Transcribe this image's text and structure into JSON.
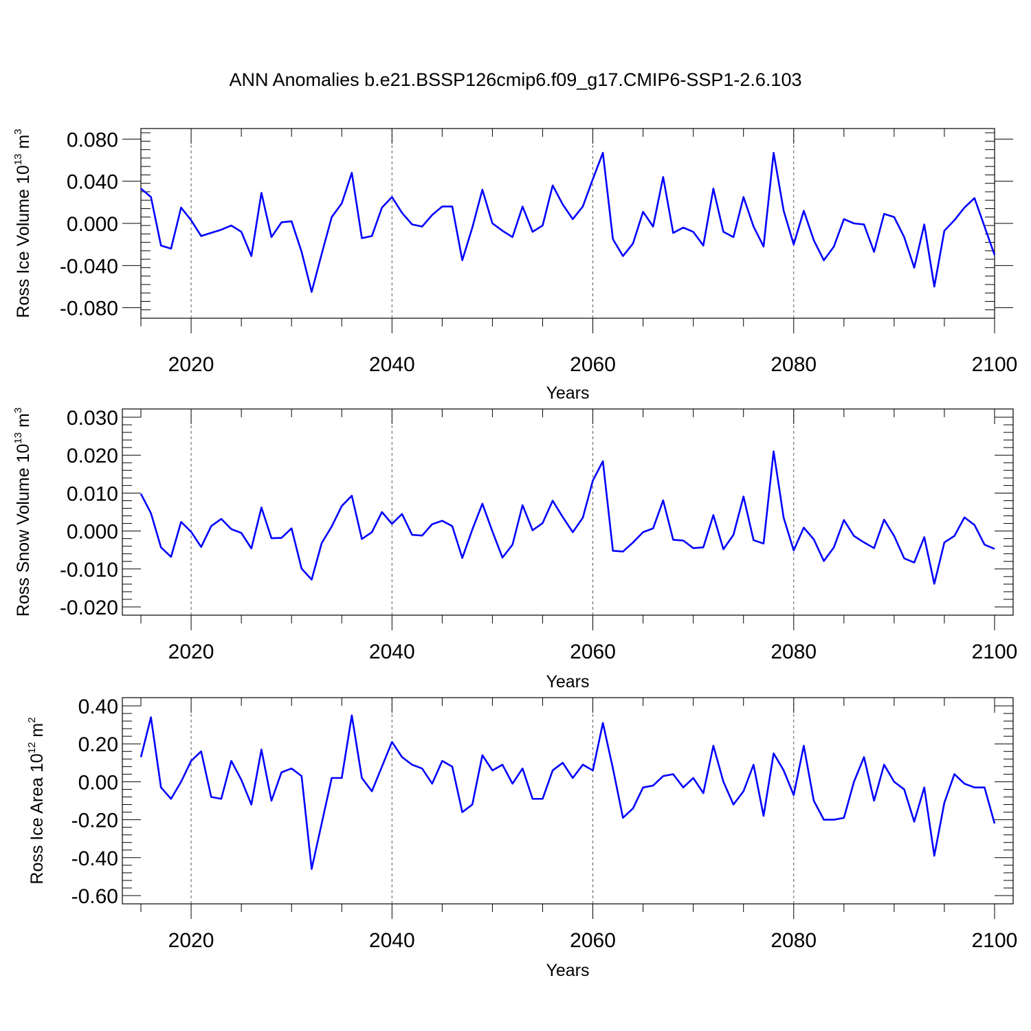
{
  "title": "ANN Anomalies b.e21.BSSP126cmip6.f09_g17.CMIP6-SSP1-2.6.103",
  "line_color": "#0000ff",
  "chart_data": [
    {
      "type": "line",
      "name": "ross-ice-volume",
      "ylabel": {
        "prefix": "Ross Ice Volume 10",
        "exp": "13",
        "unit": " m",
        "unit_exp": "3"
      },
      "xlabel": "Years",
      "xlim": [
        2015,
        2100
      ],
      "ylim": [
        -0.09,
        0.09
      ],
      "yticks": [
        -0.08,
        -0.04,
        0.0,
        0.04,
        0.08
      ],
      "ytick_labels": [
        "-0.080",
        "-0.040",
        "0.000",
        "0.040",
        "0.080"
      ],
      "xticks": [
        2020,
        2040,
        2060,
        2080,
        2100
      ],
      "xtick_labels": [
        "2020",
        "2040",
        "2060",
        "2080",
        "2100"
      ],
      "x_start": 2015,
      "values": [
        0.033,
        0.025,
        -0.021,
        -0.024,
        0.015,
        0.003,
        -0.012,
        -0.009,
        -0.006,
        -0.002,
        -0.008,
        -0.031,
        0.029,
        -0.013,
        0.001,
        0.002,
        -0.027,
        -0.065,
        -0.029,
        0.006,
        0.019,
        0.048,
        -0.014,
        -0.012,
        0.015,
        0.025,
        0.01,
        -0.001,
        -0.003,
        0.008,
        0.016,
        0.016,
        -0.035,
        -0.004,
        0.032,
        0.0,
        -0.007,
        -0.013,
        0.016,
        -0.008,
        -0.002,
        0.036,
        0.018,
        0.004,
        0.016,
        0.042,
        0.067,
        -0.015,
        -0.031,
        -0.019,
        0.011,
        -0.003,
        0.044,
        -0.009,
        -0.004,
        -0.008,
        -0.021,
        0.033,
        -0.008,
        -0.013,
        0.025,
        -0.003,
        -0.022,
        0.067,
        0.012,
        -0.02,
        0.012,
        -0.016,
        -0.035,
        -0.022,
        0.004,
        0.0,
        -0.001,
        -0.027,
        0.009,
        0.006,
        -0.013,
        -0.042,
        -0.001,
        -0.06,
        -0.007,
        0.003,
        0.015,
        0.024,
        -0.003,
        -0.03
      ]
    },
    {
      "type": "line",
      "name": "ross-snow-volume",
      "ylabel": {
        "prefix": "Ross Snow Volume 10",
        "exp": "13",
        "unit": " m",
        "unit_exp": "3"
      },
      "xlabel": "Years",
      "xlim": [
        2015,
        2100
      ],
      "ylim": [
        -0.02,
        0.03
      ],
      "yticks": [
        -0.02,
        -0.01,
        0.0,
        0.01,
        0.02,
        0.03
      ],
      "ytick_labels": [
        "-0.020",
        "-0.010",
        "0.000",
        "0.010",
        "0.020",
        "0.030"
      ],
      "xticks": [
        2020,
        2040,
        2060,
        2080,
        2100
      ],
      "xtick_labels": [
        "2020",
        "2040",
        "2060",
        "2080",
        "2100"
      ],
      "x_start": 2015,
      "values": [
        0.0098,
        0.0047,
        -0.0043,
        -0.0068,
        0.0024,
        -0.0002,
        -0.0042,
        0.0013,
        0.0032,
        0.0005,
        -0.0005,
        -0.0046,
        0.0062,
        -0.0019,
        -0.0018,
        0.0007,
        -0.0099,
        -0.0128,
        -0.0032,
        0.0012,
        0.0066,
        0.0093,
        -0.0021,
        -0.0003,
        0.005,
        0.0019,
        0.0045,
        -0.001,
        -0.0012,
        0.0018,
        0.0027,
        0.0013,
        -0.0071,
        0.0004,
        0.0072,
        -0.0001,
        -0.007,
        -0.0036,
        0.0068,
        0.0002,
        0.0021,
        0.008,
        0.0037,
        -0.0003,
        0.0035,
        0.0133,
        0.0184,
        -0.0052,
        -0.0054,
        -0.003,
        -0.0003,
        0.0007,
        0.0081,
        -0.0023,
        -0.0025,
        -0.0045,
        -0.0043,
        0.0042,
        -0.0048,
        -0.001,
        0.0091,
        -0.0024,
        -0.0033,
        0.021,
        0.0035,
        -0.0051,
        0.0009,
        -0.0022,
        -0.0079,
        -0.0043,
        0.0029,
        -0.0013,
        -0.003,
        -0.0045,
        0.003,
        -0.0013,
        -0.0072,
        -0.0083,
        -0.0016,
        -0.0139,
        -0.003,
        -0.0013,
        0.0036,
        0.0016,
        -0.0036,
        -0.0047
      ]
    },
    {
      "type": "line",
      "name": "ross-ice-area",
      "ylabel": {
        "prefix": "Ross Ice Area 10",
        "exp": "12",
        "unit": " m",
        "unit_exp": "2"
      },
      "xlabel": "Years",
      "xlim": [
        2015,
        2100
      ],
      "ylim": [
        -0.6,
        0.4
      ],
      "yticks": [
        -0.6,
        -0.4,
        -0.2,
        0.0,
        0.2,
        0.4
      ],
      "ytick_labels": [
        "-0.60",
        "-0.40",
        "-0.20",
        "0.00",
        "0.20",
        "0.40"
      ],
      "xticks": [
        2020,
        2040,
        2060,
        2080,
        2100
      ],
      "xtick_labels": [
        "2020",
        "2040",
        "2060",
        "2080",
        "2100"
      ],
      "x_start": 2015,
      "values": [
        0.13,
        0.34,
        -0.03,
        -0.09,
        0.0,
        0.11,
        0.16,
        -0.08,
        -0.09,
        0.11,
        0.01,
        -0.12,
        0.17,
        -0.1,
        0.05,
        0.07,
        0.03,
        -0.46,
        -0.22,
        0.02,
        0.02,
        0.35,
        0.02,
        -0.05,
        0.08,
        0.21,
        0.13,
        0.09,
        0.07,
        -0.01,
        0.11,
        0.08,
        -0.16,
        -0.12,
        0.14,
        0.06,
        0.09,
        -0.01,
        0.07,
        -0.09,
        -0.09,
        0.06,
        0.1,
        0.02,
        0.09,
        0.06,
        0.31,
        0.07,
        -0.19,
        -0.14,
        -0.03,
        -0.02,
        0.03,
        0.04,
        -0.03,
        0.02,
        -0.06,
        0.19,
        0.0,
        -0.12,
        -0.05,
        0.09,
        -0.18,
        0.15,
        0.06,
        -0.07,
        0.19,
        -0.1,
        -0.2,
        -0.2,
        -0.19,
        0.0,
        0.13,
        -0.1,
        0.09,
        0.0,
        -0.04,
        -0.21,
        -0.03,
        -0.39,
        -0.11,
        0.04,
        -0.01,
        -0.03,
        -0.03,
        -0.22
      ]
    }
  ]
}
